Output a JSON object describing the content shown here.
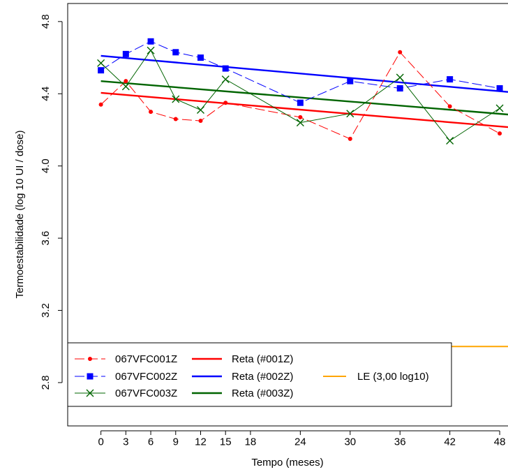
{
  "chart_data": {
    "type": "line",
    "xlabel": "Tempo (meses)",
    "ylabel": "Termoestabilidade (log 10 UI / dose)",
    "xlim": [
      -4,
      49
    ],
    "ylim": [
      2.56,
      4.9
    ],
    "xticks": [
      0,
      3,
      6,
      9,
      12,
      15,
      18,
      24,
      30,
      36,
      42,
      48
    ],
    "yticks": [
      2.8,
      3.2,
      3.6,
      4.0,
      4.4,
      4.8
    ],
    "ytick_labels": [
      "2.8",
      "3.2",
      "3.6",
      "4.0",
      "4.4",
      "4.8"
    ],
    "grid": false,
    "legend_position": "bottom-left",
    "x": [
      0,
      3,
      6,
      9,
      12,
      15,
      24,
      30,
      36,
      42,
      48
    ],
    "series": [
      {
        "name": "067VFC001Z",
        "color": "#ff0000",
        "marker": "circle",
        "dash": true,
        "values": [
          4.34,
          4.47,
          4.3,
          4.26,
          4.25,
          4.35,
          4.27,
          4.15,
          4.63,
          4.33,
          4.18
        ]
      },
      {
        "name": "067VFC002Z",
        "color": "#0000ff",
        "marker": "square",
        "dash": true,
        "values": [
          4.53,
          4.62,
          4.69,
          4.63,
          4.6,
          4.54,
          4.35,
          4.47,
          4.43,
          4.48,
          4.43
        ]
      },
      {
        "name": "067VFC003Z",
        "color": "#006400",
        "marker": "cross",
        "dash": false,
        "values": [
          4.57,
          4.44,
          4.64,
          4.37,
          4.31,
          4.48,
          4.24,
          4.29,
          4.49,
          4.14,
          4.32
        ]
      }
    ],
    "fit_lines": [
      {
        "name": "Reta (#001Z)",
        "color": "#ff0000",
        "x": [
          0,
          49
        ],
        "y": [
          4.405,
          4.215
        ]
      },
      {
        "name": "Reta (#002Z)",
        "color": "#0000ff",
        "x": [
          0,
          49
        ],
        "y": [
          4.61,
          4.41
        ]
      },
      {
        "name": "Reta (#003Z)",
        "color": "#006400",
        "x": [
          0,
          49
        ],
        "y": [
          4.47,
          4.285
        ]
      }
    ],
    "reference_line": {
      "name": "LE (3,00 log10)",
      "color": "#ffa500",
      "y": 3.0
    }
  }
}
